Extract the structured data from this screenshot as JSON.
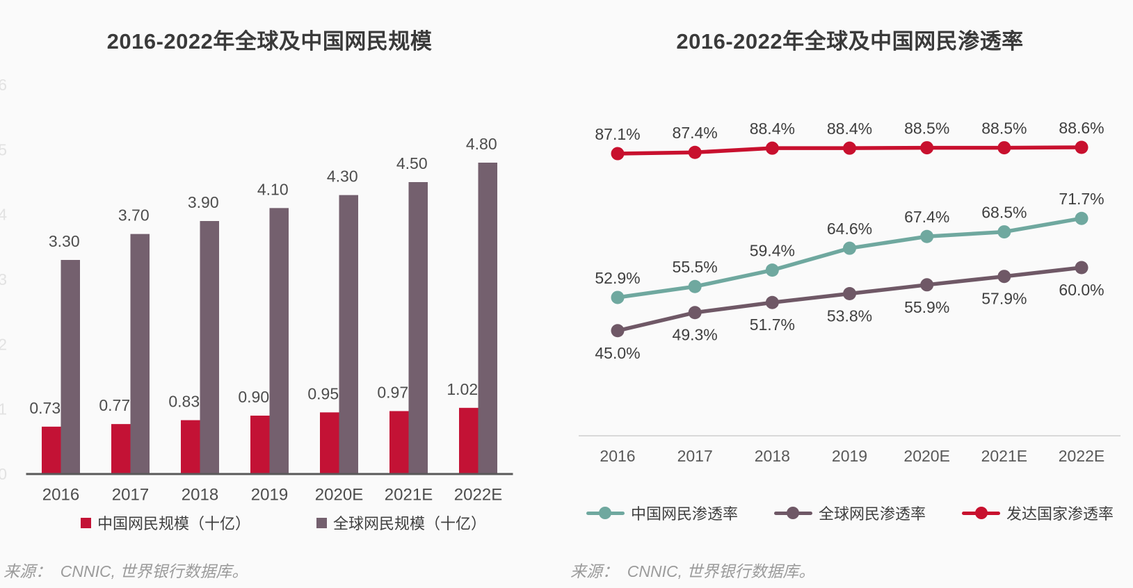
{
  "page": {
    "background_color": "#fafafa",
    "text_color": "#3a3a3a"
  },
  "chart_data": [
    {
      "type": "bar",
      "title": "2016-2022年全球及中国网民规模",
      "categories": [
        "2016",
        "2017",
        "2018",
        "2019",
        "2020E",
        "2021E",
        "2022E"
      ],
      "series": [
        {
          "name": "中国网民规模（十亿）",
          "color": "#c31235",
          "values": [
            0.73,
            0.77,
            0.83,
            0.9,
            0.95,
            0.97,
            1.02
          ]
        },
        {
          "name": "全球网民规模（十亿）",
          "color": "#74606e",
          "values": [
            3.3,
            3.7,
            3.9,
            4.1,
            4.3,
            4.5,
            4.8
          ]
        }
      ],
      "xlabel": "",
      "ylabel": "",
      "ylim": [
        0,
        6
      ],
      "yticks": [
        0,
        1,
        2,
        3,
        4,
        5,
        6
      ],
      "ytick_color": "#e2e2e2",
      "grid": false,
      "value_label_format": "2dp",
      "value_label_color": "#4d4d4d",
      "axis_line_color": "#595959",
      "xtick_color": "#4d4d4d",
      "legend_position": "bottom",
      "source": "来源：  CNNIC, 世界银行数据库。"
    },
    {
      "type": "line",
      "title": "2016-2022年全球及中国网民渗透率",
      "categories": [
        "2016",
        "2017",
        "2018",
        "2019",
        "2020E",
        "2021E",
        "2022E"
      ],
      "series": [
        {
          "name": "中国网民渗透率",
          "color": "#6fa89f",
          "values": [
            52.9,
            55.5,
            59.4,
            64.6,
            67.4,
            68.5,
            71.7
          ],
          "label_position": "above"
        },
        {
          "name": "全球网民渗透率",
          "color": "#6f5866",
          "values": [
            45.0,
            49.3,
            51.7,
            53.8,
            55.9,
            57.9,
            60.0
          ],
          "label_position": "below"
        },
        {
          "name": "发达国家渗透率",
          "color": "#c8102e",
          "values": [
            87.1,
            87.4,
            88.4,
            88.4,
            88.5,
            88.5,
            88.6
          ],
          "label_position": "above"
        }
      ],
      "xlabel": "",
      "ylabel": "",
      "ylim": [
        20,
        100
      ],
      "grid": false,
      "markers": "circle",
      "value_label_format": "pct1",
      "value_label_color": "#3f3f3f",
      "axis_line_color": "#d9d9d9",
      "xtick_color": "#595959",
      "legend_position": "bottom",
      "source": "来源：  CNNIC, 世界银行数据库。"
    }
  ]
}
